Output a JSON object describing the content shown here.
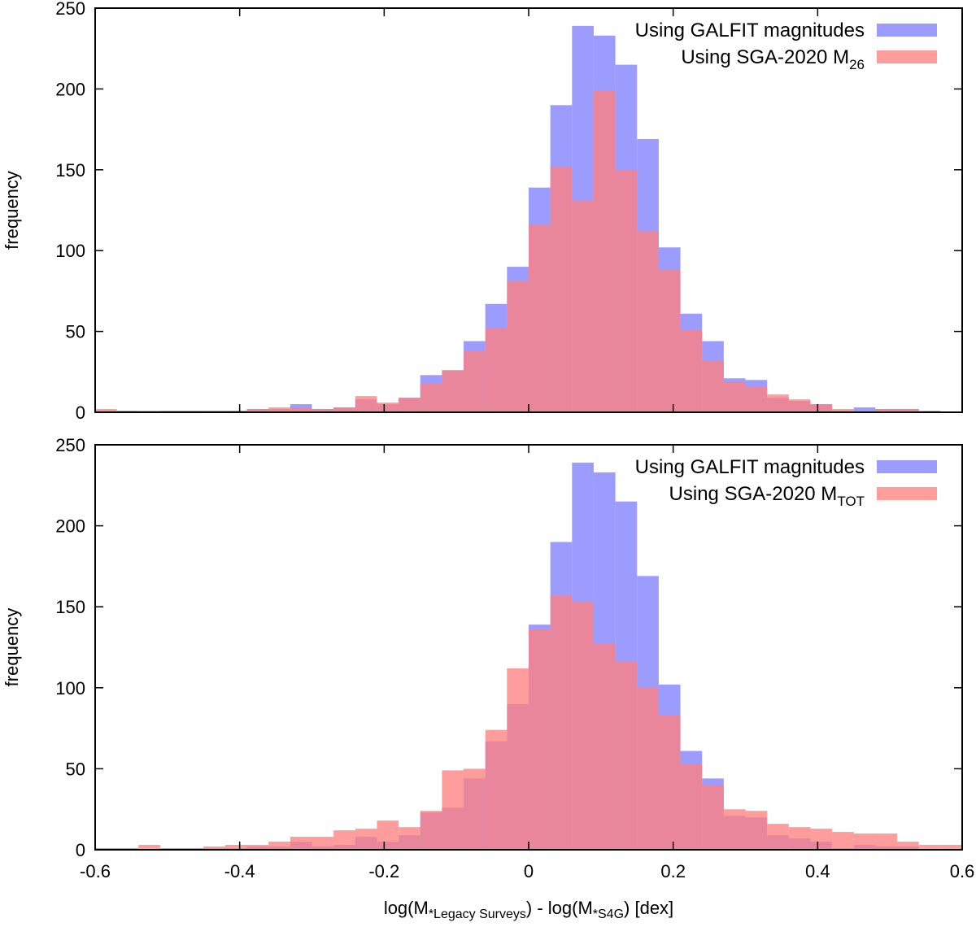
{
  "chart_data": [
    {
      "type": "bar",
      "panel": "top",
      "ylabel": "frequency",
      "xlim": [
        -0.6,
        0.6
      ],
      "ylim": [
        0,
        250
      ],
      "yticks": [
        0,
        50,
        100,
        150,
        200,
        250
      ],
      "bin_start": -0.6,
      "bin_width": 0.03,
      "series": [
        {
          "name": "Using GALFIT magnitudes",
          "legend_main": "Using GALFIT magnitudes",
          "legend_sub": "",
          "color": "#8080ff",
          "values": [
            1,
            1,
            0,
            1,
            1,
            1,
            1,
            2,
            2,
            5,
            2,
            3,
            8,
            5,
            9,
            23,
            26,
            44,
            67,
            90,
            139,
            190,
            239,
            233,
            215,
            169,
            102,
            61,
            44,
            21,
            20,
            9,
            7,
            5,
            1,
            3,
            2,
            2,
            0,
            0
          ]
        },
        {
          "name": "Using SGA-2020 M26",
          "legend_main": "Using SGA-2020 M",
          "legend_sub": "26",
          "color": "#ff8080",
          "values": [
            2,
            1,
            1,
            1,
            1,
            0,
            1,
            2,
            3,
            3,
            2,
            3,
            10,
            6,
            9,
            18,
            26,
            38,
            52,
            81,
            116,
            152,
            131,
            199,
            150,
            112,
            88,
            51,
            32,
            19,
            16,
            11,
            8,
            5,
            2,
            1,
            2,
            2,
            1,
            0
          ]
        }
      ]
    },
    {
      "type": "bar",
      "panel": "bottom",
      "ylabel": "frequency",
      "xlabel": "log(M*Legacy Surveys) - log(M*S4G) [dex]",
      "xlabel_parts": [
        "log(M",
        "*Legacy Surveys",
        ") - log(M",
        "*S4G",
        ") [dex]"
      ],
      "xlim": [
        -0.6,
        0.6
      ],
      "ylim": [
        0,
        250
      ],
      "yticks": [
        0,
        50,
        100,
        150,
        200,
        250
      ],
      "xticks": [
        -0.6,
        -0.4,
        -0.2,
        0,
        0.2,
        0.4,
        0.6
      ],
      "xtick_labels": [
        "-0.6",
        "-0.4",
        "-0.2",
        "0",
        "0.2",
        "0.4",
        "0.6"
      ],
      "bin_start": -0.6,
      "bin_width": 0.03,
      "series": [
        {
          "name": "Using GALFIT magnitudes",
          "legend_main": "Using GALFIT magnitudes",
          "legend_sub": "",
          "color": "#8080ff",
          "values": [
            1,
            1,
            0,
            1,
            1,
            1,
            1,
            2,
            2,
            5,
            2,
            3,
            8,
            5,
            9,
            23,
            26,
            44,
            67,
            90,
            139,
            190,
            239,
            233,
            215,
            169,
            102,
            61,
            44,
            21,
            20,
            9,
            7,
            5,
            1,
            3,
            2,
            2,
            0,
            0
          ]
        },
        {
          "name": "Using SGA-2020 MTOT",
          "legend_main": "Using SGA-2020 M",
          "legend_sub": "TOT",
          "color": "#ff8080",
          "values": [
            1,
            1,
            3,
            1,
            1,
            2,
            3,
            3,
            5,
            8,
            8,
            12,
            13,
            18,
            14,
            24,
            49,
            50,
            74,
            112,
            136,
            157,
            153,
            127,
            116,
            100,
            83,
            53,
            40,
            25,
            24,
            16,
            14,
            13,
            11,
            10,
            10,
            5,
            3,
            3
          ]
        }
      ]
    }
  ]
}
